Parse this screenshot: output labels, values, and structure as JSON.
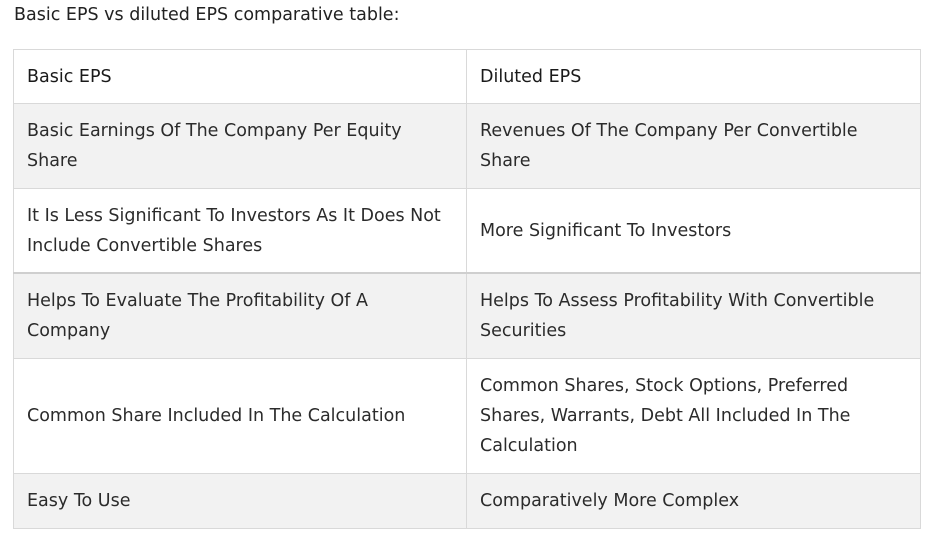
{
  "heading": "Basic EPS vs diluted EPS comparative table:",
  "table": {
    "headers": [
      "Basic EPS",
      "Diluted EPS"
    ],
    "rows": [
      [
        "Basic Earnings Of The Company Per Equity Share",
        "Revenues Of The Company Per Convertible Share"
      ],
      [
        "It Is Less Significant To Investors As It Does Not Include Convertible Shares",
        "More Significant To Investors"
      ],
      [
        "Helps To Evaluate The Profitability Of A Company",
        "Helps To Assess Profitability With Convertible Securities"
      ],
      [
        "Common Share Included In The Calculation",
        "Common Shares, Stock Options, Preferred Shares, Warrants, Debt All Included In The Calculation"
      ],
      [
        "Easy To Use",
        "Comparatively More Complex"
      ]
    ]
  },
  "colors": {
    "shaded_row": "#f2f2f2",
    "border": "#d9d9d9",
    "text": "#2b2b2b"
  }
}
